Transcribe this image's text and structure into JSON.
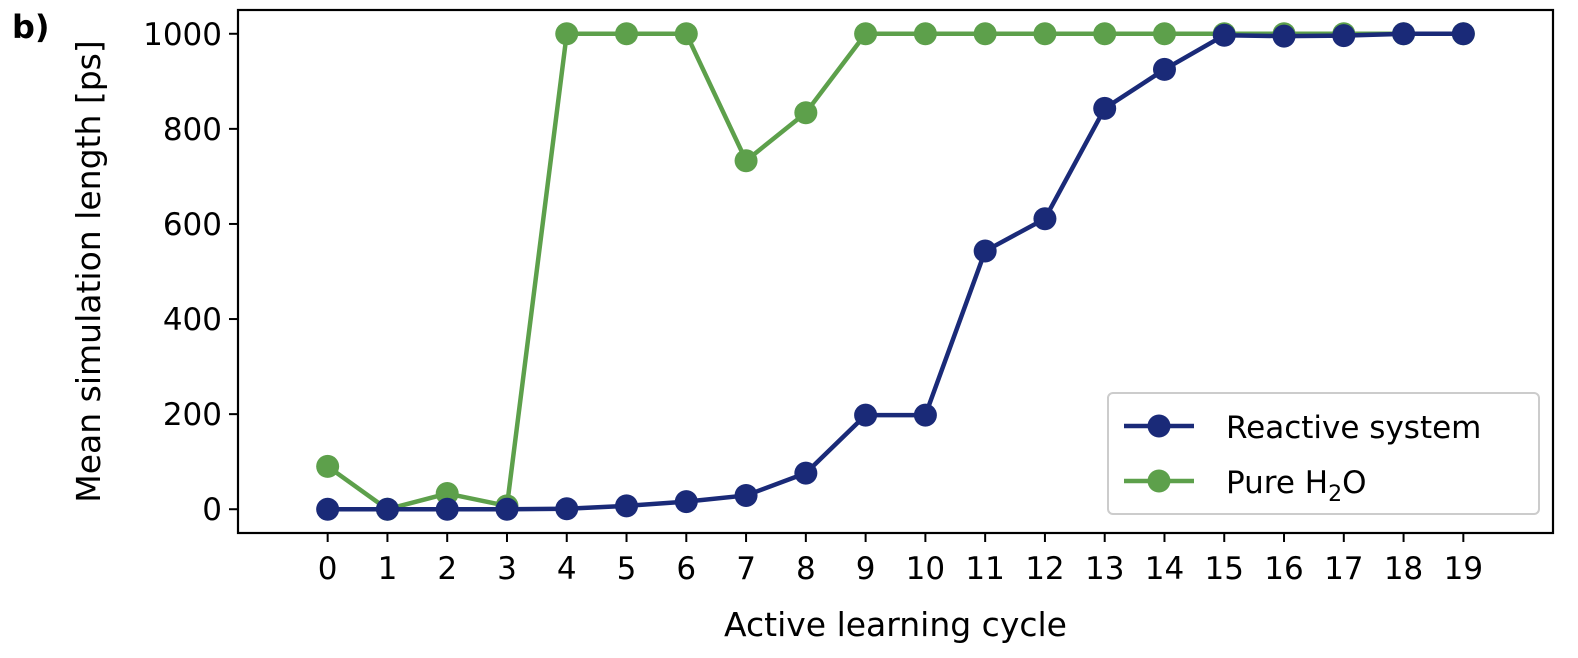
{
  "panel_label": "b)",
  "chart_data": {
    "type": "line",
    "title": "",
    "xlabel": "Active learning cycle",
    "ylabel": "Mean simulation length [ps]",
    "x": [
      0,
      1,
      2,
      3,
      4,
      5,
      6,
      7,
      8,
      9,
      10,
      11,
      12,
      13,
      14,
      15,
      16,
      17,
      18,
      19
    ],
    "xlim": [
      -1.5,
      20.5
    ],
    "ylim": [
      -50,
      1050
    ],
    "xticks": [
      "0",
      "1",
      "2",
      "3",
      "4",
      "5",
      "6",
      "7",
      "8",
      "9",
      "10",
      "11",
      "12",
      "13",
      "14",
      "15",
      "16",
      "17",
      "18",
      "19"
    ],
    "yticks": [
      0,
      200,
      400,
      600,
      800,
      1000
    ],
    "ytick_labels": [
      "0",
      "200",
      "400",
      "600",
      "800",
      "1000"
    ],
    "grid": false,
    "legend_position": "lower-right",
    "series": [
      {
        "name": "Reactive system",
        "color": "#1a2a78",
        "values": [
          0,
          0,
          0,
          0,
          1,
          7,
          16,
          29,
          76,
          198,
          198,
          543,
          611,
          843,
          925,
          997,
          995,
          996,
          1000,
          1000
        ]
      },
      {
        "name": "Pure H2O",
        "legend_parts": [
          "Pure H",
          "2",
          "O"
        ],
        "color": "#5da04b",
        "values": [
          90,
          0,
          33,
          7,
          1000,
          1000,
          1000,
          733,
          834,
          1000,
          1000,
          1000,
          1000,
          1000,
          1000,
          1000,
          1000,
          1000,
          1000,
          1000
        ]
      }
    ]
  }
}
